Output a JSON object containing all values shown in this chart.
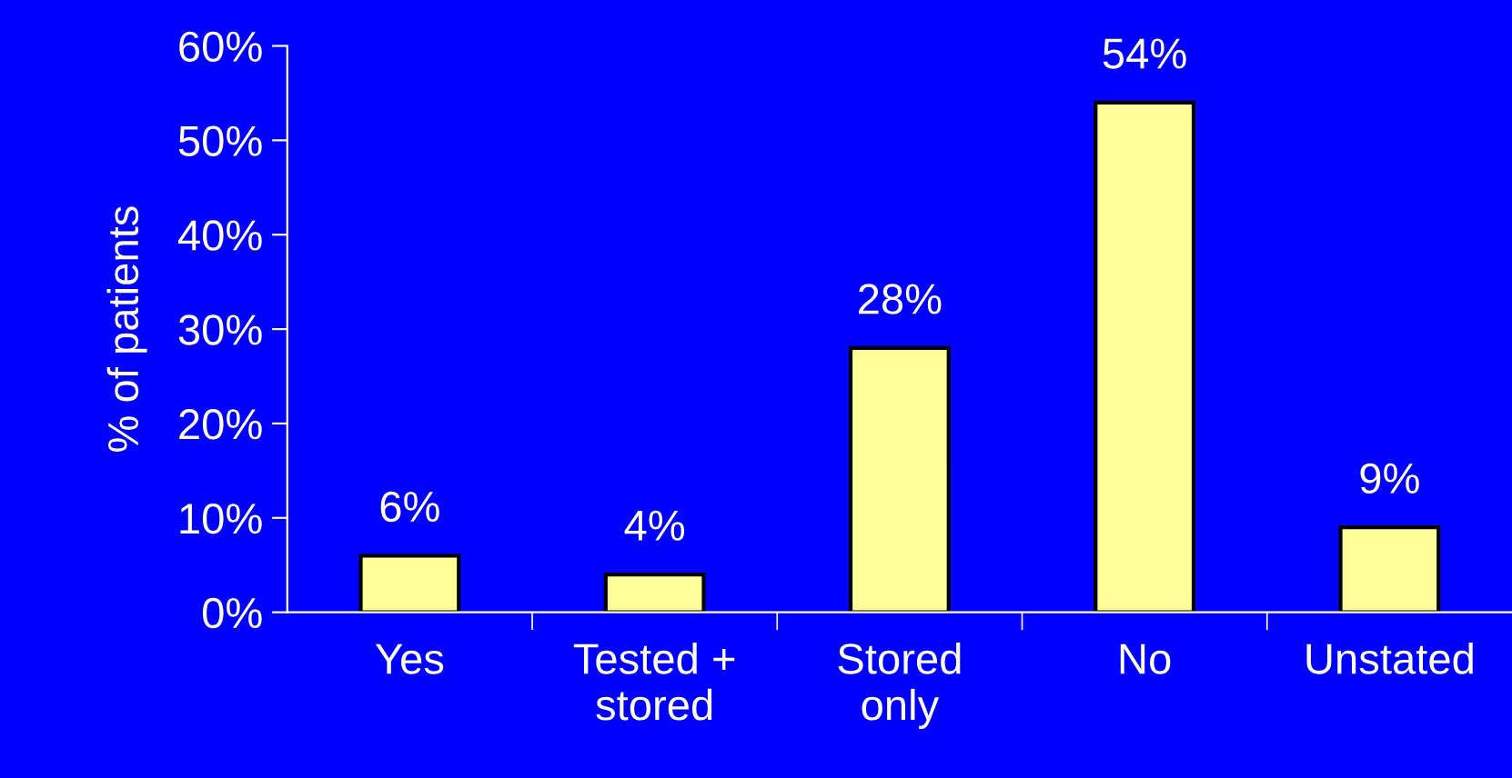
{
  "chart_data": {
    "type": "bar",
    "ylabel": "% of patients",
    "categories": [
      "Yes",
      "Tested +\nstored",
      "Stored\nonly",
      "No",
      "Unstated"
    ],
    "values": [
      6,
      4,
      28,
      54,
      9
    ],
    "color": "#ffff99",
    "value_labels": [
      "6%",
      "4%",
      "28%",
      "54%",
      "9%"
    ],
    "ylim": [
      0,
      60
    ],
    "yticks": [
      {
        "value": 0,
        "label": "0%"
      },
      {
        "value": 10,
        "label": "10%"
      },
      {
        "value": 20,
        "label": "20%"
      },
      {
        "value": 30,
        "label": "30%"
      },
      {
        "value": 40,
        "label": "40%"
      },
      {
        "value": 50,
        "label": "50%"
      },
      {
        "value": 60,
        "label": "60%"
      }
    ],
    "grid": false,
    "legend": false
  }
}
